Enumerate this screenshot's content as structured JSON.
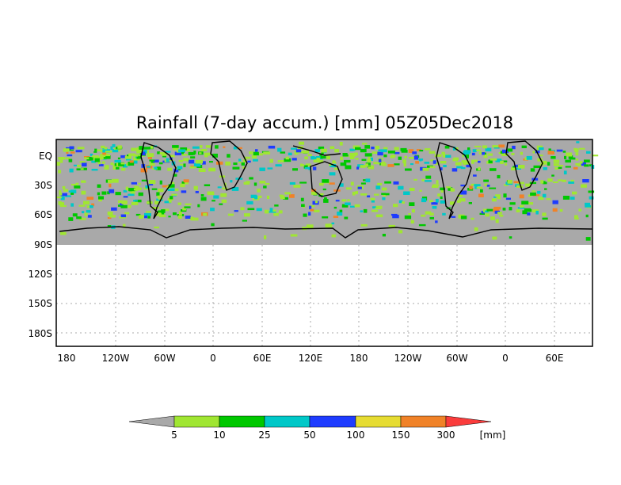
{
  "title": "Rainfall (7-day accum.) [mm] 05Z05Dec2018",
  "map": {
    "y_axis_labels": [
      "EQ",
      "30S",
      "60S",
      "90S",
      "120S",
      "150S",
      "180S"
    ],
    "x_axis_labels": [
      "180",
      "120W",
      "60W",
      "0",
      "60E",
      "120E",
      "180",
      "120W",
      "60W",
      "0",
      "60E"
    ],
    "land_color": "#a9a9a9",
    "grid": true
  },
  "colorbar": {
    "values": [
      "5",
      "10",
      "25",
      "50",
      "100",
      "150",
      "300"
    ],
    "unit": "[mm]",
    "colors": [
      "#a9a9a9",
      "#a0e632",
      "#00c800",
      "#00c8c8",
      "#1e3cff",
      "#e6dc32",
      "#f08228",
      "#fa3c3c"
    ]
  }
}
